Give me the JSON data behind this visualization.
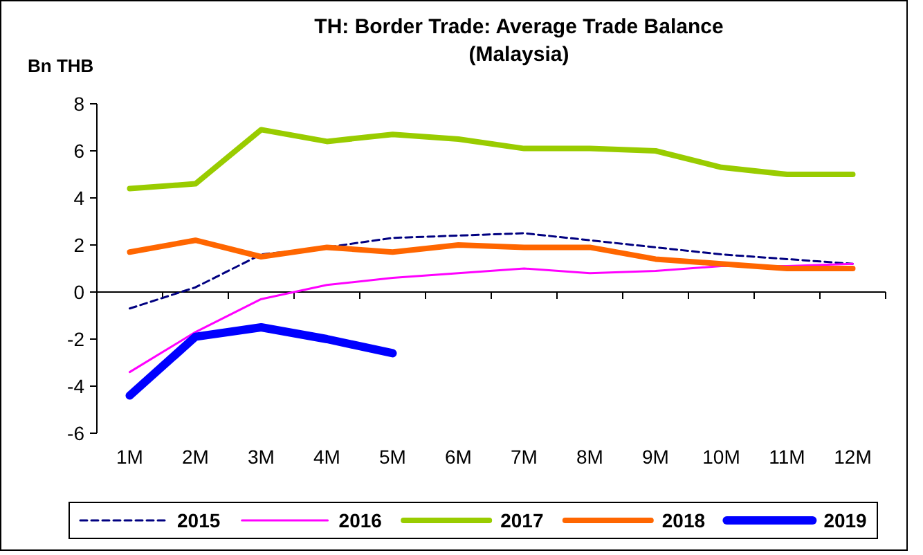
{
  "chart_data": {
    "type": "line",
    "title": "TH: Border Trade: Average Trade Balance\n(Malaysia)",
    "ylabel": "Bn THB",
    "categories": [
      "1M",
      "2M",
      "3M",
      "4M",
      "5M",
      "6M",
      "7M",
      "8M",
      "9M",
      "10M",
      "11M",
      "12M"
    ],
    "ylim": [
      -6,
      8
    ],
    "yticks": [
      -6,
      -4,
      -2,
      0,
      2,
      4,
      6,
      8
    ],
    "legend": "bottom",
    "marker": "none",
    "series": [
      {
        "name": "2015",
        "color": "#000080",
        "line_style": "dashed",
        "values": [
          -0.7,
          0.2,
          1.6,
          1.9,
          2.3,
          2.4,
          2.5,
          2.2,
          1.9,
          1.6,
          1.4,
          1.2
        ]
      },
      {
        "name": "2016",
        "color": "#ff00ff",
        "line_style": "solid",
        "values": [
          -3.4,
          -1.7,
          -0.3,
          0.3,
          0.6,
          0.8,
          1.0,
          0.8,
          0.9,
          1.1,
          1.1,
          1.2
        ]
      },
      {
        "name": "2017",
        "color": "#99cc00",
        "line_style": "solid",
        "values": [
          4.4,
          4.6,
          6.9,
          6.4,
          6.7,
          6.5,
          6.1,
          6.1,
          6.0,
          5.3,
          5.0,
          5.0
        ]
      },
      {
        "name": "2018",
        "color": "#ff6600",
        "line_style": "solid",
        "values": [
          1.7,
          2.2,
          1.5,
          1.9,
          1.7,
          2.0,
          1.9,
          1.9,
          1.4,
          1.2,
          1.0,
          1.0
        ]
      },
      {
        "name": "2019",
        "color": "#0000ff",
        "line_style": "solid",
        "values": [
          -4.4,
          -1.9,
          -1.5,
          -2.0,
          -2.6,
          null,
          null,
          null,
          null,
          null,
          null,
          null
        ]
      }
    ]
  }
}
